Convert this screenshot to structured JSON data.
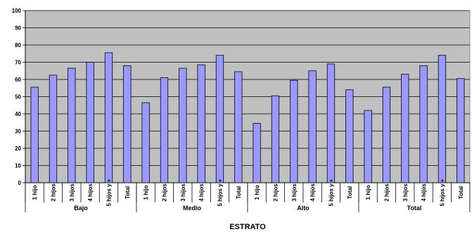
{
  "chart_data": {
    "type": "bar",
    "title": "",
    "xlabel": "ESTRATO",
    "ylabel": "",
    "ylim": [
      0,
      100
    ],
    "y_ticks": [
      0,
      10,
      20,
      30,
      40,
      50,
      60,
      70,
      80,
      90,
      100
    ],
    "grid": true,
    "legend": "none",
    "colors": {
      "plot_background": "#c0c0c0",
      "bar_fill": "#9999ff",
      "bar_stroke": "#000000",
      "grid": "#000000"
    },
    "groups": [
      {
        "name": "Bajo",
        "categories": [
          "1 hijo",
          "2 hijos",
          "3 hijos",
          "4 hijos",
          "5 hijos y +",
          "Total"
        ],
        "values": [
          55.5,
          62.5,
          66.5,
          70,
          75.5,
          68
        ]
      },
      {
        "name": "Medio",
        "categories": [
          "1 hijo",
          "2 hijos",
          "3 hijos",
          "4 hijos",
          "5 hijos y +",
          "Total"
        ],
        "values": [
          46.5,
          61,
          66.5,
          68.5,
          74,
          64.5
        ]
      },
      {
        "name": "Alto",
        "categories": [
          "1 hijo",
          "2 hijos",
          "3 hijos",
          "4 hijos",
          "5 hijos y +",
          "Total"
        ],
        "values": [
          34.5,
          50.5,
          59.5,
          65,
          69,
          54
        ]
      },
      {
        "name": "Total",
        "categories": [
          "1 hijo",
          "2 hijos",
          "3 hijos",
          "4 hijos",
          "5 hijos y +",
          "Total"
        ],
        "values": [
          42,
          55.5,
          63,
          68,
          74,
          60.5
        ]
      }
    ]
  }
}
